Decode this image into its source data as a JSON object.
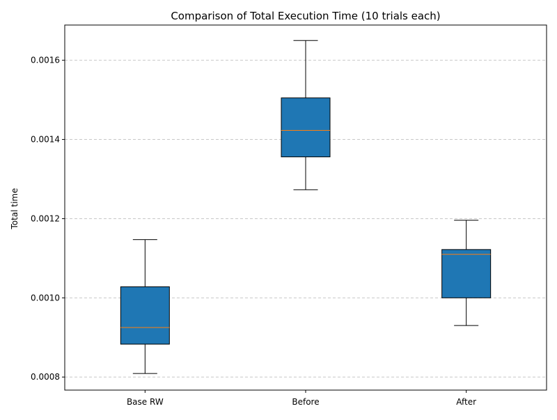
{
  "chart_data": {
    "type": "box",
    "title": "Comparison of Total Execution Time (10 trials each)",
    "xlabel": "",
    "ylabel": "Total time",
    "ylim": [
      0.000767,
      0.001689
    ],
    "yticks": [
      0.0008,
      0.001,
      0.0012,
      0.0014,
      0.0016
    ],
    "ytick_labels": [
      "0.0008",
      "0.0010",
      "0.0012",
      "0.0014",
      "0.0016"
    ],
    "grid": "y-dashed",
    "box_color": "#1f77b4",
    "median_color": "#ff7f0e",
    "categories": [
      "Base RW",
      "Before",
      "After"
    ],
    "boxes": [
      {
        "name": "Base RW",
        "whisker_low": 0.000809,
        "q1": 0.000883,
        "median": 0.000925,
        "q3": 0.001028,
        "whisker_high": 0.001147
      },
      {
        "name": "Before",
        "whisker_low": 0.001273,
        "q1": 0.001356,
        "median": 0.001423,
        "q3": 0.001505,
        "whisker_high": 0.00165
      },
      {
        "name": "After",
        "whisker_low": 0.00093,
        "q1": 0.001,
        "median": 0.00111,
        "q3": 0.001122,
        "whisker_high": 0.001196
      }
    ]
  }
}
